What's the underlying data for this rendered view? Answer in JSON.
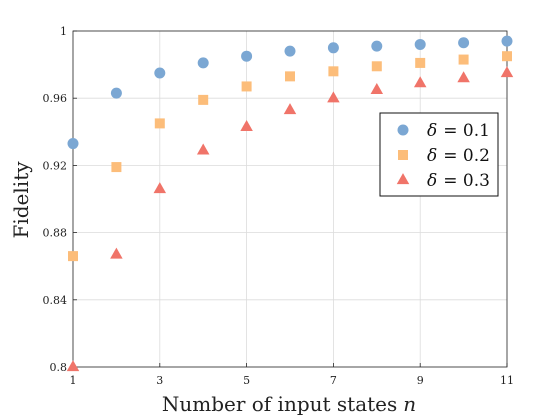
{
  "chart_data": {
    "type": "scatter",
    "title": "",
    "xlabel_text": "Number of input states",
    "xlabel_var": "n",
    "ylabel": "Fidelity",
    "xlim": [
      1,
      11
    ],
    "ylim": [
      0.8,
      1.0
    ],
    "x_ticks": [
      1,
      3,
      5,
      7,
      9,
      11
    ],
    "y_ticks": [
      0.8,
      0.84,
      0.88,
      0.92,
      0.96,
      1.0
    ],
    "y_tick_labels": [
      "0.8",
      "0.84",
      "0.88",
      "0.92",
      "0.96",
      "1"
    ],
    "grid": true,
    "legend_position": "right",
    "series": [
      {
        "name": "δ = 0.1",
        "legend_symbol": "δ",
        "legend_value": "= 0.1",
        "marker": "circle",
        "color": "#7ba7d3",
        "x": [
          1,
          2,
          3,
          4,
          5,
          6,
          7,
          8,
          9,
          10,
          11
        ],
        "values": [
          0.933,
          0.963,
          0.975,
          0.981,
          0.985,
          0.988,
          0.99,
          0.991,
          0.992,
          0.993,
          0.994
        ]
      },
      {
        "name": "δ = 0.2",
        "legend_symbol": "δ",
        "legend_value": "= 0.2",
        "marker": "square",
        "color": "#fcbd7a",
        "x": [
          1,
          2,
          3,
          4,
          5,
          6,
          7,
          8,
          9,
          10,
          11
        ],
        "values": [
          0.866,
          0.919,
          0.945,
          0.959,
          0.967,
          0.973,
          0.976,
          0.979,
          0.981,
          0.983,
          0.985
        ]
      },
      {
        "name": "δ = 0.3",
        "legend_symbol": "δ",
        "legend_value": "= 0.3",
        "marker": "triangle",
        "color": "#f07469",
        "x": [
          1,
          2,
          3,
          4,
          5,
          6,
          7,
          8,
          9,
          10,
          11
        ],
        "values": [
          0.8,
          0.867,
          0.906,
          0.929,
          0.943,
          0.953,
          0.96,
          0.965,
          0.969,
          0.972,
          0.975
        ]
      }
    ]
  }
}
